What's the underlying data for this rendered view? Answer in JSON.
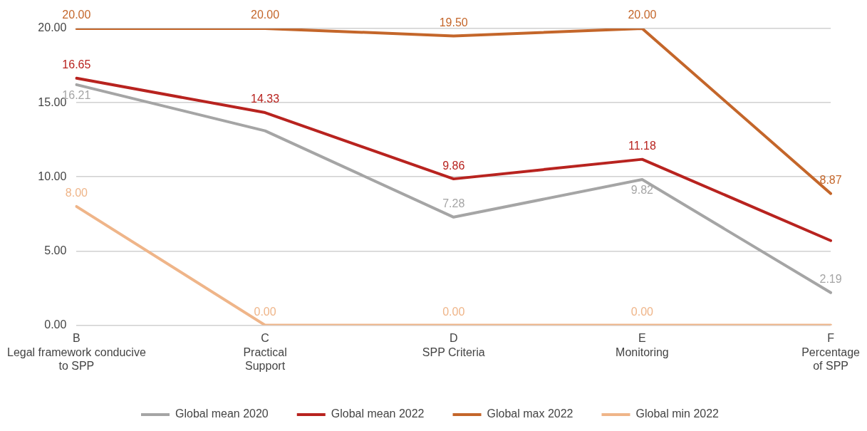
{
  "chart_data": {
    "type": "line",
    "categories": [
      "B\nLegal framework conducive\nto SPP",
      "C\nPractical\nSupport",
      "D\nSPP Criteria",
      "E\nMonitoring",
      "F\nPercentage\nof SPP"
    ],
    "series": [
      {
        "name": "Global mean 2020",
        "color": "#a5a5a5",
        "values": [
          16.21,
          13.1,
          7.28,
          9.82,
          2.19
        ],
        "value_labels": [
          "16.21",
          null,
          "7.28",
          "9.82",
          "2.19"
        ]
      },
      {
        "name": "Global mean 2022",
        "color": "#b8231f",
        "values": [
          16.65,
          14.33,
          9.86,
          11.18,
          5.7
        ],
        "value_labels": [
          "16.65",
          "14.33",
          "9.86",
          "11.18",
          null
        ]
      },
      {
        "name": "Global max 2022",
        "color": "#c4662a",
        "values": [
          20,
          20,
          19.5,
          20,
          8.87
        ],
        "value_labels": [
          "20.00",
          "20.00",
          "19.50",
          "20.00",
          "8.87"
        ]
      },
      {
        "name": "Global min 2022",
        "color": "#efb589",
        "values": [
          8,
          0,
          0,
          0,
          0
        ],
        "value_labels": [
          "8.00",
          "0.00",
          "0.00",
          "0.00",
          null
        ]
      }
    ],
    "ylim": [
      0,
      20
    ],
    "yticks": [
      {
        "value": 0,
        "label": "0.00"
      },
      {
        "value": 5,
        "label": "5.00"
      },
      {
        "value": 10,
        "label": "10.00"
      },
      {
        "value": 15,
        "label": "15.00"
      },
      {
        "value": 20,
        "label": "20.00"
      }
    ],
    "grid": "y",
    "legend": "bottom",
    "marker": "none",
    "line_style": "solid"
  }
}
